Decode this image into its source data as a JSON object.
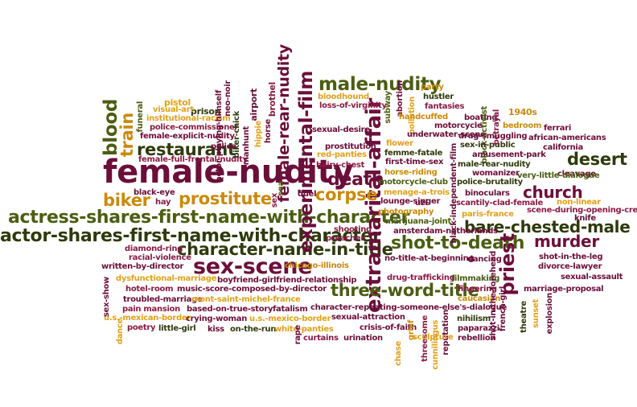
{
  "words": {
    "female_nudity": "female-nudity",
    "sex_scene": "sex-scene",
    "actress_shares": "actress-shares-first-name-with-character",
    "actor_shares": "actor-shares-first-name-with-character",
    "character_name_in_title": "character-name-in-title",
    "extramarital_affair": "extramarital-affair",
    "experimental_film": "experimental-film",
    "female_rear_nudity": "female-rear-nudity",
    "male_nudity": "male-nudity",
    "blood": "blood",
    "train": "train",
    "restaurant": "restaurant",
    "prostitute": "prostitute",
    "biker": "biker",
    "death": "death",
    "corpse": "corpse",
    "shot_to_death": "shot-to-death",
    "three_word_title": "three-word-title",
    "bare_chested_male": "bare-chested-male",
    "murder": "murder",
    "priest": "priest",
    "church": "church",
    "desert": "desert",
    "pistol": "pistol",
    "prison": "prison",
    "funeral": "funeral",
    "neo_noir": "neo-noir",
    "visual_art": "visual-art",
    "institutional_racism": "institutional-racism",
    "police_commissioner": "police-commissioner",
    "female_explicit_nudity": "female-explicit-nudity",
    "female_full_frontal_nudity": "female-full-frontal-nudity",
    "actor_playing_himself": "actor-playing-himself",
    "biker_chick": "biker-chick",
    "manhunt": "manhunt",
    "airport": "airport",
    "hippie": "hippie",
    "horse": "horse",
    "brothel": "brothel",
    "police": "police",
    "black_eye": "black-eye",
    "hay": "hay",
    "sex": "sex",
    "sea": "sea",
    "diamond_ring": "diamond-ring",
    "racial_violence": "racial-violence",
    "written_by_director": "written-by-director",
    "dysfunctional_marriage": "dysfunctional-marriage",
    "boyfriend_girlfriend": "boyfriend-girlfriend-relationship",
    "hotel_room": "hotel-room",
    "music_score": "music-score-composed-by-director",
    "troubled_marriage": "troubled-marriage",
    "mont_saint_michel": "mont-saint-michel-france",
    "pain_mansion": "pain mansion",
    "based_on_true_story": "based-on-true-story",
    "fatalism": "fatalism",
    "us_mexican_border": "u.s.-mexican-border",
    "crying_woman": "crying-woman",
    "us_mexico_border": "u.s.-mexico-border",
    "poetry": "poetry",
    "little_girl": "little-girl",
    "kiss": "kiss",
    "on_the_run": "on-the-run",
    "white_panties": "white-panties",
    "curtains": "curtains",
    "urination": "urination",
    "rape": "rape",
    "dance": "dance",
    "sex_show": "sex-show",
    "chicago_illinois": "chicago-illinois",
    "preacher": "preacher",
    "shooting": "shooting",
    "bloodhound": "bloodhound",
    "loss_of_virginity": "loss-of-virginity",
    "sexual_desire": "sexual-desire",
    "prostitution": "prostitution",
    "red_panties": "red-panties",
    "hairy_chest": "hairy-chest",
    "subway": "subway",
    "abortion": "abortion",
    "pollution": "pollution",
    "party": "party",
    "hustler": "hustler",
    "fantasies": "fantasies",
    "handcuffed": "handcuffed",
    "motorcycle": "motorcycle",
    "underwater_scene": "underwater-scene",
    "flower": "flower",
    "femme_fatale": "femme-fatale",
    "first_time_sex": "first-time-sex",
    "horse_riding": "horse-riding",
    "motorcycle_club": "motorcycle-club",
    "menage_a_trois": "menage-a-trois",
    "lounge_singer": "lounge-singer",
    "photography": "photography",
    "uzi": "uzi",
    "marijuana_joint": "marijuana-joint",
    "amsterdam": "amsterdam-netherlands",
    "duel": "duel",
    "boating": "boating",
    "black_activist": "black-activist",
    "drug_smuggling": "drug-smuggling",
    "sex_in_public": "sex-in-public",
    "amusement_park": "amusement-park",
    "male_rear_nudity": "male-rear-nudity",
    "womanizer": "womanizer",
    "black_independent_film": "black-independent-film",
    "police_brutality": "police-brutality",
    "binoculars": "binoculars",
    "scantily_clad": "scantily-clad-female",
    "paris_france": "paris-france",
    "1940s": "1940s",
    "bedroom": "bedroom",
    "betrayal": "betrayal",
    "ferrari": "ferrari",
    "african_americans": "african-americans",
    "california": "california",
    "cleavage": "cleavage",
    "very_little_dialogue": "very-little-dialogue",
    "scene_during_credits": "scene-during-opening-credits",
    "knife": "knife",
    "non_linear": "non-linear",
    "no_title": "no-title-at-beginning",
    "dancing": "dancing",
    "drug_trafficking": "drug-trafficking",
    "filmmaking": "filmmaking",
    "fingering": "fingering",
    "caucasian": "caucasian",
    "character_repeating": "character-repeating-someone-else's-dialogue",
    "sexual_attraction": "sexual-attraction",
    "nihilism": "nihilism",
    "crisis_of_faith": "crisis-of-faith",
    "grief": "grief",
    "paparazzi": "paparazzi",
    "rebellion": "rebellion",
    "threesome": "threesome",
    "cunnilingus": "cunnilingus",
    "reputation": "reputation",
    "sculpture": "sculpture",
    "chase": "chase",
    "shot_in_forehead": "shot-in-the-forehead",
    "french_girl": "french-girl",
    "theatre": "theatre",
    "sunset": "sunset",
    "shot_in_leg": "shot-in-the-leg",
    "divorce_lawyer": "divorce-lawyer",
    "sexual_assault": "sexual-assault",
    "marriage_proposal": "marriage-proposal",
    "explosion": "explosion"
  }
}
